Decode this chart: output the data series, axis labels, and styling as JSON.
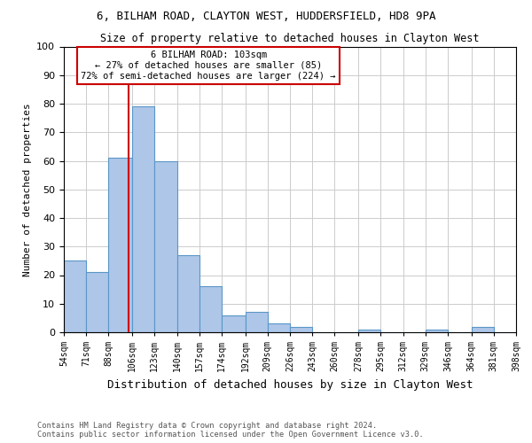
{
  "title_line1": "6, BILHAM ROAD, CLAYTON WEST, HUDDERSFIELD, HD8 9PA",
  "title_line2": "Size of property relative to detached houses in Clayton West",
  "xlabel": "Distribution of detached houses by size in Clayton West",
  "ylabel": "Number of detached properties",
  "footnote": "Contains HM Land Registry data © Crown copyright and database right 2024.\nContains public sector information licensed under the Open Government Licence v3.0.",
  "bin_labels": [
    "54sqm",
    "71sqm",
    "88sqm",
    "106sqm",
    "123sqm",
    "140sqm",
    "157sqm",
    "174sqm",
    "192sqm",
    "209sqm",
    "226sqm",
    "243sqm",
    "260sqm",
    "278sqm",
    "295sqm",
    "312sqm",
    "329sqm",
    "346sqm",
    "364sqm",
    "381sqm",
    "398sqm"
  ],
  "bar_values": [
    25,
    21,
    61,
    79,
    60,
    27,
    16,
    6,
    7,
    3,
    2,
    0,
    0,
    1,
    0,
    0,
    1,
    0,
    2,
    0
  ],
  "bar_color": "#aec6e8",
  "bar_edge_color": "#5a96c8",
  "vline_x": 103,
  "vline_color": "#cc0000",
  "annotation_text": "6 BILHAM ROAD: 103sqm\n← 27% of detached houses are smaller (85)\n72% of semi-detached houses are larger (224) →",
  "annotation_box_color": "#ffffff",
  "annotation_box_edge": "#cc0000",
  "ylim": [
    0,
    100
  ],
  "bin_edges": [
    54,
    71,
    88,
    106,
    123,
    140,
    157,
    174,
    192,
    209,
    226,
    243,
    260,
    278,
    295,
    312,
    329,
    346,
    364,
    381,
    398
  ],
  "background_color": "#ffffff",
  "grid_color": "#cccccc"
}
